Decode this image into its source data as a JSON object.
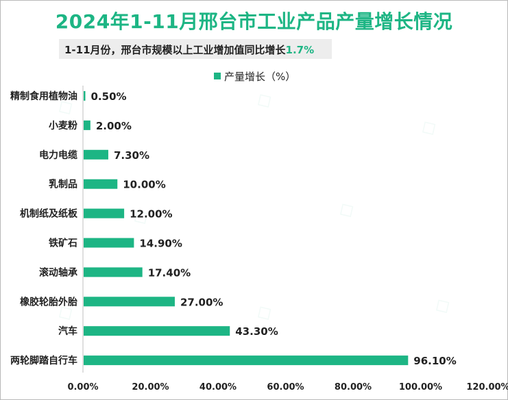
{
  "title": "2024年1-11月邢台市工业产品产量增长情况",
  "subtitle": {
    "prefix": "1-11月份，邢台市规模以上工业增加值同比增长",
    "highlight": "1.7%"
  },
  "colors": {
    "accent": "#1db584",
    "text": "#222222"
  },
  "chart_data": {
    "type": "bar",
    "orientation": "horizontal",
    "categories": [
      "精制食用植物油",
      "小麦粉",
      "电力电缆",
      "乳制品",
      "机制纸及纸板",
      "铁矿石",
      "滚动轴承",
      "橡胶轮胎外胎",
      "汽车",
      "两轮脚踏自行车"
    ],
    "series": [
      {
        "name": "产量增长（%）",
        "values": [
          0.5,
          2.0,
          7.3,
          10.0,
          12.0,
          14.9,
          17.4,
          27.0,
          43.3,
          96.1
        ]
      }
    ],
    "value_labels": [
      "0.50%",
      "2.00%",
      "7.30%",
      "10.00%",
      "12.00%",
      "14.90%",
      "17.40%",
      "27.00%",
      "43.30%",
      "96.10%"
    ],
    "xlim": [
      0,
      120
    ],
    "xticks": [
      "0.00%",
      "20.00%",
      "40.00%",
      "60.00%",
      "80.00%",
      "100.00%",
      "120.00%"
    ],
    "legend_position": "top",
    "grid": false
  }
}
